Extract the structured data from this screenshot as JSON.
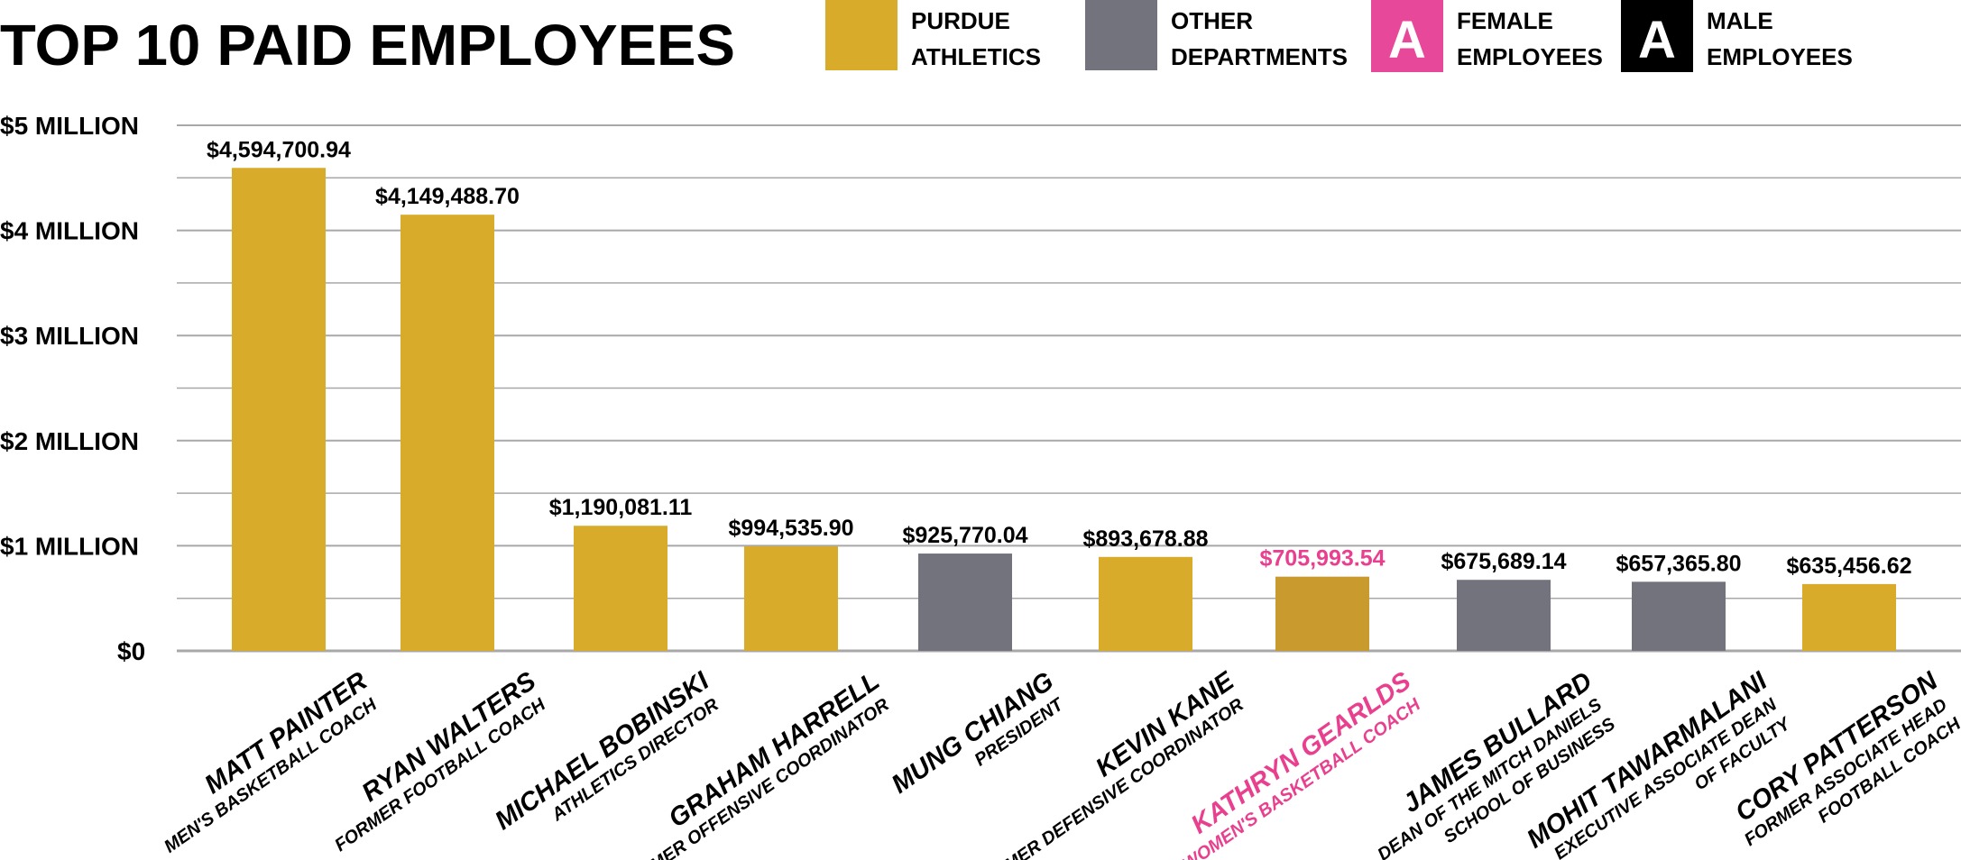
{
  "chart_data": {
    "type": "bar",
    "title": "TOP 10 PAID EMPLOYEES",
    "ylim": [
      0,
      5000000
    ],
    "grid": true,
    "legend_placement": "top",
    "legend": [
      {
        "label_lines": [
          "PURDUE",
          "ATHLETICS"
        ],
        "color": "#d9ab2a",
        "mark": ""
      },
      {
        "label_lines": [
          "OTHER",
          "DEPARTMENTS"
        ],
        "color": "#72737d",
        "mark": ""
      },
      {
        "label_lines": [
          "FEMALE",
          "EMPLOYEES"
        ],
        "color": "#e8489a",
        "mark": "A"
      },
      {
        "label_lines": [
          "MALE",
          "EMPLOYEES"
        ],
        "color": "#000000",
        "mark": "A"
      }
    ],
    "y_ticks": [
      {
        "value": 5000000,
        "label": "$5 MILLION"
      },
      {
        "value": 4000000,
        "label": "$4 MILLION"
      },
      {
        "value": 3000000,
        "label": "$3 MILLION"
      },
      {
        "value": 2000000,
        "label": "$2 MILLION"
      },
      {
        "value": 1000000,
        "label": "$1 MILLION"
      },
      {
        "value": 0,
        "label": "$0"
      }
    ],
    "minor_grid_values": [
      4500000,
      3500000,
      2500000,
      1500000,
      500000
    ],
    "bars": [
      {
        "name": "MATT PAINTER",
        "role": [
          "MEN'S BASKETBALL COACH"
        ],
        "value": 4594700.94,
        "value_label": "$4,594,700.94",
        "department": "Purdue Athletics",
        "gender": "male"
      },
      {
        "name": "RYAN WALTERS",
        "role": [
          "FORMER FOOTBALL COACH"
        ],
        "value": 4149488.7,
        "value_label": "$4,149,488.70",
        "department": "Purdue Athletics",
        "gender": "male"
      },
      {
        "name": "MICHAEL BOBINSKI",
        "role": [
          "ATHLETICS DIRECTOR"
        ],
        "value": 1190081.11,
        "value_label": "$1,190,081.11",
        "department": "Purdue Athletics",
        "gender": "male"
      },
      {
        "name": "GRAHAM HARRELL",
        "role": [
          "FORMER OFFENSIVE COORDINATOR"
        ],
        "value": 994535.9,
        "value_label": "$994,535.90",
        "department": "Purdue Athletics",
        "gender": "male"
      },
      {
        "name": "MUNG CHIANG",
        "role": [
          "PRESIDENT"
        ],
        "value": 925770.04,
        "value_label": "$925,770.04",
        "department": "Other Departments",
        "gender": "male"
      },
      {
        "name": "KEVIN KANE",
        "role": [
          "FORMER DEFENSIVE COORDINATOR"
        ],
        "value": 893678.88,
        "value_label": "$893,678.88",
        "department": "Purdue Athletics",
        "gender": "male"
      },
      {
        "name": "KATHRYN GEARLDS",
        "role": [
          "WOMEN'S BASKETBALL COACH"
        ],
        "value": 705993.54,
        "value_label": "$705,993.54",
        "department": "Purdue Athletics",
        "gender": "female"
      },
      {
        "name": "JAMES BULLARD",
        "role": [
          "DEAN OF THE MITCH DANIELS",
          "SCHOOL OF BUSINESS"
        ],
        "value": 675689.14,
        "value_label": "$675,689.14",
        "department": "Other Departments",
        "gender": "male"
      },
      {
        "name": "MOHIT TAWARMALANI",
        "role": [
          "EXECUTIVE ASSOCIATE DEAN",
          "OF FACULTY"
        ],
        "value": 657365.8,
        "value_label": "$657,365.80",
        "department": "Other Departments",
        "gender": "male"
      },
      {
        "name": "CORY PATTERSON",
        "role": [
          "FORMER ASSOCIATE HEAD",
          "FOOTBALL COACH"
        ],
        "value": 635456.62,
        "value_label": "$635,456.62",
        "department": "Purdue Athletics",
        "gender": "male"
      }
    ],
    "colors": {
      "athletics": "#d9ab2a",
      "athletics_female": "#c99a2e",
      "other": "#72737d",
      "female_text": "#e8408f",
      "male_text": "#000000",
      "grid": "#a8a8a8"
    }
  }
}
